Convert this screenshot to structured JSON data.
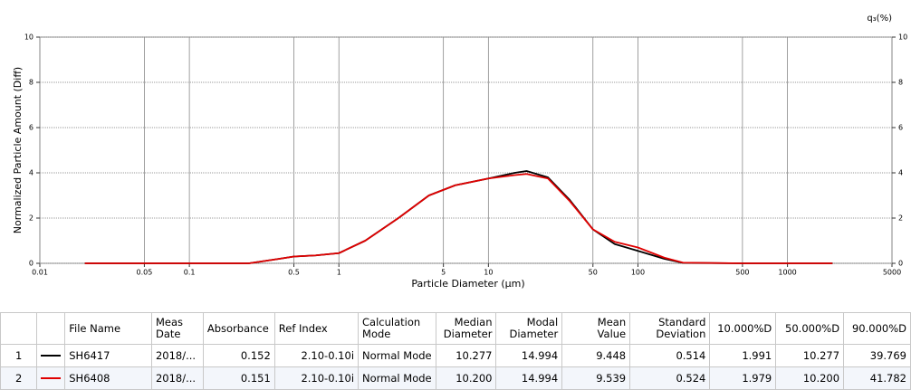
{
  "chart_data": {
    "type": "line",
    "xlabel": "Particle Diameter (µm)",
    "ylabel": "Normalized Particle Amount (Diff)",
    "y2label": "q₃(%)",
    "log_x": true,
    "grid": true,
    "xlim": [
      0.01,
      5000
    ],
    "xticks": [
      0.01,
      0.05,
      0.1,
      0.5,
      1,
      5,
      10,
      50,
      100,
      500,
      1000,
      5000
    ],
    "ylim": [
      0,
      10
    ],
    "yticks": [
      0,
      2,
      4,
      6,
      8,
      10
    ],
    "y2lim": [
      0,
      10
    ],
    "y2ticks": [
      0,
      2,
      4,
      6,
      8,
      10
    ],
    "x": [
      0.02,
      0.1,
      0.25,
      0.4,
      0.5,
      0.7,
      1,
      1.5,
      2.5,
      4,
      6,
      10,
      15,
      18,
      25,
      35,
      50,
      70,
      100,
      150,
      200,
      500,
      2000
    ],
    "series": [
      {
        "name": "SH6417",
        "color": "#000000",
        "values": [
          0,
          0,
          0,
          0.2,
          0.3,
          0.35,
          0.45,
          1.0,
          2.0,
          3.0,
          3.45,
          3.75,
          4.0,
          4.08,
          3.8,
          2.8,
          1.5,
          0.85,
          0.55,
          0.2,
          0.02,
          0,
          0
        ]
      },
      {
        "name": "SH6408",
        "color": "#e00000",
        "values": [
          0,
          0,
          0,
          0.2,
          0.3,
          0.35,
          0.45,
          1.0,
          2.0,
          3.0,
          3.45,
          3.75,
          3.9,
          3.95,
          3.75,
          2.75,
          1.5,
          0.95,
          0.7,
          0.25,
          0.03,
          0,
          0
        ]
      }
    ]
  },
  "table": {
    "headers": [
      "File Name",
      "Meas Date",
      "Absorbance",
      "Ref Index",
      "Calculation Mode",
      "Median Diameter",
      "Modal Diameter",
      "Mean Value",
      "Standard Deviation",
      "10.000%D",
      "50.000%D",
      "90.000%D"
    ],
    "rows": [
      [
        "1",
        "SH6417",
        "2018/...",
        "0.152",
        "2.10-0.10i",
        "Normal Mode",
        "10.277",
        "14.994",
        "9.448",
        "0.514",
        "1.991",
        "10.277",
        "39.769"
      ],
      [
        "2",
        "SH6408",
        "2018/...",
        "0.151",
        "2.10-0.10i",
        "Normal Mode",
        "10.200",
        "14.994",
        "9.539",
        "0.524",
        "1.979",
        "10.200",
        "41.782"
      ]
    ]
  }
}
